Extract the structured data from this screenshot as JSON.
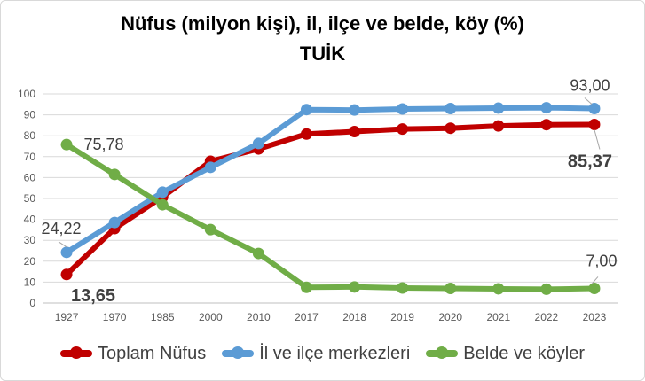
{
  "chart_data": {
    "type": "line",
    "title": "Nüfus (milyon kişi), il, ilçe ve belde, köy (%)",
    "subtitle": "TUİK",
    "categories": [
      "1927",
      "1970",
      "1985",
      "2000",
      "2010",
      "2017",
      "2018",
      "2019",
      "2020",
      "2021",
      "2022",
      "2023"
    ],
    "ylim": [
      0,
      100
    ],
    "yticks": [
      0,
      10,
      20,
      30,
      40,
      50,
      60,
      70,
      80,
      90,
      100
    ],
    "grid": true,
    "legend_position": "bottom",
    "series": [
      {
        "name": "Toplam Nüfus",
        "color": "#c00000",
        "values": [
          13.65,
          35.6,
          50.7,
          67.8,
          73.7,
          80.8,
          82.0,
          83.2,
          83.6,
          84.7,
          85.3,
          85.37
        ]
      },
      {
        "name": "İl ve ilçe merkezleri",
        "color": "#5b9bd5",
        "values": [
          24.22,
          38.5,
          53.0,
          64.9,
          76.3,
          92.5,
          92.3,
          92.8,
          93.0,
          93.2,
          93.4,
          93.0
        ]
      },
      {
        "name": "Belde ve köyler",
        "color": "#70ad47",
        "values": [
          75.78,
          61.5,
          47.0,
          35.1,
          23.7,
          7.5,
          7.7,
          7.2,
          7.0,
          6.8,
          6.6,
          7.0
        ]
      }
    ],
    "data_labels": [
      {
        "series": 0,
        "index": 0,
        "text": "13,65",
        "bold": true
      },
      {
        "series": 1,
        "index": 0,
        "text": "24,22",
        "bold": false
      },
      {
        "series": 2,
        "index": 0,
        "text": "75,78",
        "bold": false
      },
      {
        "series": 1,
        "index": 11,
        "text": "93,00",
        "bold": false
      },
      {
        "series": 0,
        "index": 11,
        "text": "85,37",
        "bold": true
      },
      {
        "series": 2,
        "index": 11,
        "text": "7,00",
        "bold": false
      }
    ]
  }
}
